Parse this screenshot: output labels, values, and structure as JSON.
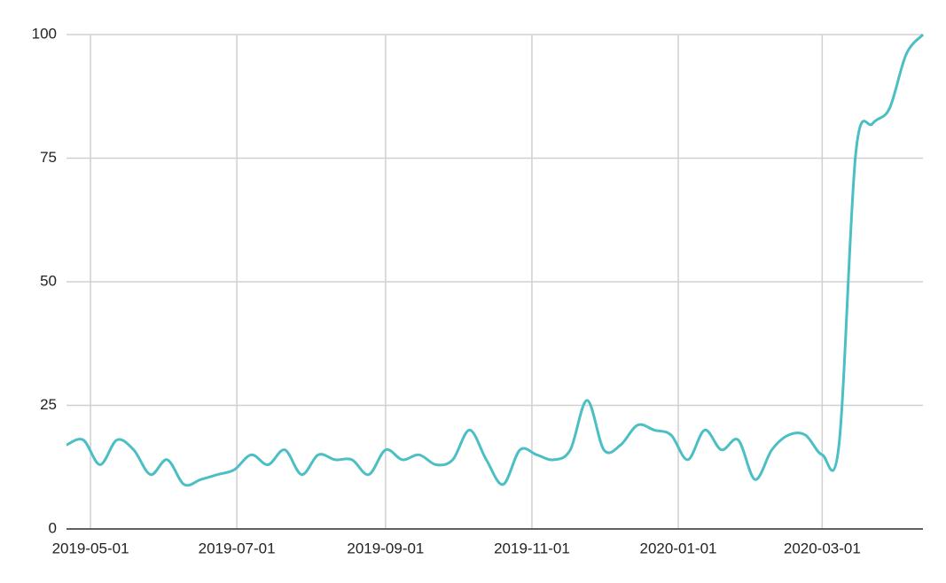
{
  "chart_data": {
    "type": "line",
    "x": [
      "2019-04-21",
      "2019-04-28",
      "2019-05-05",
      "2019-05-12",
      "2019-05-19",
      "2019-05-26",
      "2019-06-02",
      "2019-06-09",
      "2019-06-16",
      "2019-06-23",
      "2019-06-30",
      "2019-07-07",
      "2019-07-14",
      "2019-07-21",
      "2019-07-28",
      "2019-08-04",
      "2019-08-11",
      "2019-08-18",
      "2019-08-25",
      "2019-09-01",
      "2019-09-08",
      "2019-09-15",
      "2019-09-22",
      "2019-09-29",
      "2019-10-06",
      "2019-10-13",
      "2019-10-20",
      "2019-10-27",
      "2019-11-03",
      "2019-11-10",
      "2019-11-17",
      "2019-11-24",
      "2019-12-01",
      "2019-12-08",
      "2019-12-15",
      "2019-12-22",
      "2019-12-29",
      "2020-01-05",
      "2020-01-12",
      "2020-01-19",
      "2020-01-26",
      "2020-02-02",
      "2020-02-09",
      "2020-02-16",
      "2020-02-23",
      "2020-03-01",
      "2020-03-08",
      "2020-03-15",
      "2020-03-22",
      "2020-03-29",
      "2020-04-05",
      "2020-04-12"
    ],
    "series": [
      {
        "color": "#4bbfc4",
        "values": [
          17,
          18,
          13,
          18,
          16,
          11,
          14,
          9,
          10,
          11,
          12,
          15,
          13,
          16,
          11,
          15,
          14,
          14,
          11,
          16,
          14,
          15,
          13,
          14,
          20,
          14,
          9,
          16,
          15,
          14,
          16,
          26,
          16,
          17,
          21,
          20,
          19,
          14,
          20,
          16,
          18,
          10,
          16,
          19,
          19,
          15,
          17,
          76,
          82,
          85,
          96,
          100
        ]
      }
    ],
    "xlim": [
      "2019-04-21",
      "2020-04-12"
    ],
    "xticks": [
      "2019-05-01",
      "2019-07-01",
      "2019-09-01",
      "2019-11-01",
      "2020-01-01",
      "2020-03-01"
    ],
    "ylim": [
      0,
      100
    ],
    "yticks": [
      0,
      25,
      50,
      75,
      100
    ],
    "grid": true
  }
}
